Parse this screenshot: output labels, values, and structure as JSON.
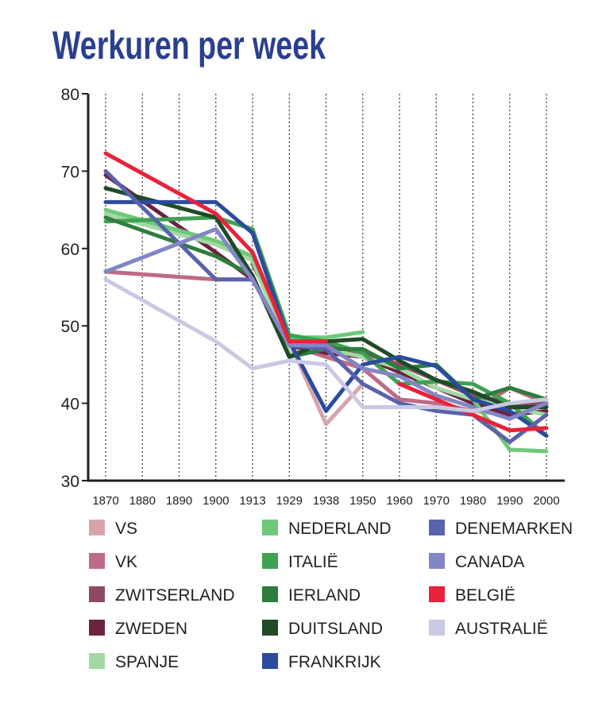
{
  "chart_data": {
    "type": "line",
    "title": "Werkuren per week",
    "xlabel": "",
    "ylabel": "",
    "ylim": [
      30,
      80
    ],
    "yticks": [
      30,
      40,
      50,
      60,
      70,
      80
    ],
    "grid": "vertical dotted",
    "legend": "bottom",
    "categories": [
      "1870",
      "1880",
      "1890",
      "1900",
      "1913",
      "1929",
      "1938",
      "1950",
      "1960",
      "1970",
      "1980",
      "1990",
      "2000"
    ],
    "series": [
      {
        "name": "VS",
        "color": "#d9a3ae",
        "values": [
          62.0,
          null,
          null,
          null,
          58.3,
          48.0,
          37.3,
          42.5,
          null,
          39.5,
          39.0,
          38.5,
          39.8
        ]
      },
      {
        "name": "VK",
        "color": "#c06a85",
        "values": [
          57.0,
          null,
          null,
          56.0,
          56.0,
          47.5,
          46.0,
          44.5,
          40.5,
          40.0,
          39.0,
          42.0,
          40.0
        ]
      },
      {
        "name": "ZWITSERLAND",
        "color": "#8e4a65",
        "values": [
          65.0,
          null,
          null,
          null,
          58.0,
          48.5,
          47.5,
          46.5,
          45.0,
          43.0,
          41.0,
          40.0,
          40.0
        ]
      },
      {
        "name": "ZWEDEN",
        "color": "#6b2340",
        "values": [
          69.5,
          null,
          null,
          59.5,
          56.0,
          47.5,
          46.5,
          46.0,
          44.0,
          42.0,
          40.0,
          38.5,
          39.0
        ]
      },
      {
        "name": "SPANJE",
        "color": "#a3d9a3",
        "values": [
          64.5,
          null,
          null,
          60.5,
          58.5,
          46.5,
          47.0,
          46.0,
          44.5,
          42.0,
          40.5,
          39.5,
          38.5
        ]
      },
      {
        "name": "NEDERLAND",
        "color": "#6ec97a",
        "values": [
          65.0,
          null,
          null,
          61.0,
          59.0,
          48.5,
          48.5,
          49.2,
          null,
          null,
          40.5,
          34.0,
          33.8
        ]
      },
      {
        "name": "ITALIË",
        "color": "#3fa152",
        "values": [
          63.5,
          null,
          null,
          64.0,
          62.5,
          48.8,
          48.0,
          46.5,
          42.5,
          42.8,
          42.5,
          40.0,
          35.8
        ]
      },
      {
        "name": "IERLAND",
        "color": "#2e7d3e",
        "values": [
          64.0,
          null,
          null,
          59.0,
          56.5,
          46.0,
          47.0,
          47.0,
          44.5,
          45.0,
          40.5,
          42.0,
          40.5
        ]
      },
      {
        "name": "DUITSLAND",
        "color": "#1f4a26",
        "values": [
          67.8,
          null,
          null,
          64.0,
          56.5,
          46.0,
          48.0,
          48.3,
          45.5,
          43.0,
          41.5,
          39.5,
          39.5
        ]
      },
      {
        "name": "FRANKRIJK",
        "color": "#2a4b9e",
        "values": [
          66.0,
          null,
          null,
          66.0,
          62.0,
          48.0,
          39.0,
          45.0,
          46.0,
          44.8,
          40.5,
          39.0,
          35.8
        ]
      },
      {
        "name": "DENEMARKEN",
        "color": "#5a62ad",
        "values": [
          70.0,
          null,
          null,
          56.0,
          56.0,
          47.5,
          47.0,
          42.5,
          40.0,
          39.0,
          38.5,
          35.0,
          38.5
        ]
      },
      {
        "name": "CANADA",
        "color": "#8386c4",
        "values": [
          57.0,
          null,
          null,
          62.5,
          56.0,
          47.5,
          47.5,
          44.5,
          43.5,
          41.0,
          39.5,
          38.0,
          40.0
        ]
      },
      {
        "name": "BELGIË",
        "color": "#e8223a",
        "values": [
          72.3,
          null,
          null,
          64.5,
          59.5,
          48.0,
          48.0,
          null,
          42.5,
          40.5,
          38.5,
          36.5,
          36.8
        ]
      },
      {
        "name": "AUSTRALIË",
        "color": "#c9c9e3",
        "values": [
          56.0,
          null,
          null,
          48.0,
          44.5,
          45.5,
          45.0,
          39.5,
          39.5,
          39.5,
          39.0,
          40.0,
          40.5
        ]
      }
    ]
  }
}
